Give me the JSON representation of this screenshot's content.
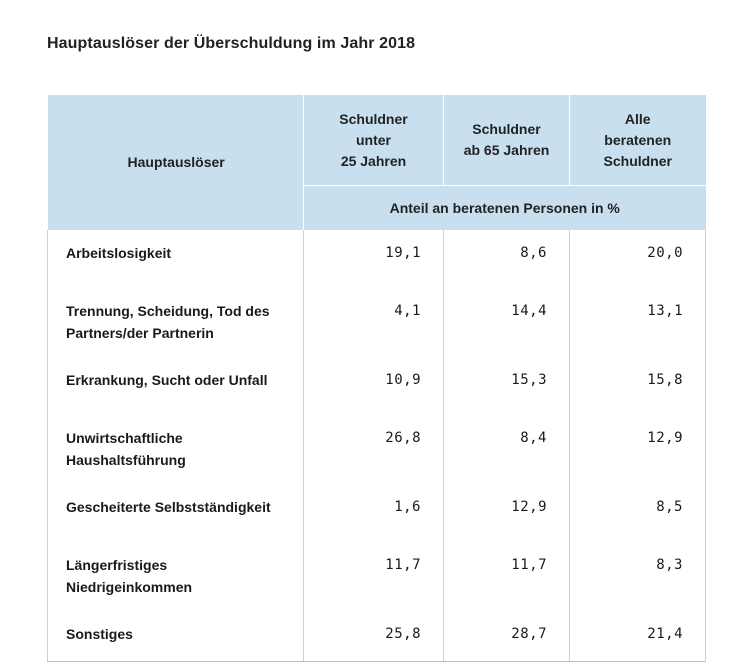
{
  "title": "Hauptauslöser der Überschuldung im Jahr 2018",
  "header": {
    "col1": "Hauptauslöser",
    "col2": "Schuldner\nunter\n25 Jahren",
    "col3": "Schuldner\nab 65 Jahren",
    "col4": "Alle\nberatenen\nSchuldner",
    "subheader": "Anteil an beratenen Personen in %"
  },
  "rows": [
    {
      "label": "Arbeitslosigkeit",
      "v1": "19,1",
      "v2": "8,6",
      "v3": "20,0"
    },
    {
      "label": "Trennung, Scheidung, Tod des Partners/der Partnerin",
      "v1": "4,1",
      "v2": "14,4",
      "v3": "13,1"
    },
    {
      "label": "Erkrankung, Sucht oder Unfall",
      "v1": "10,9",
      "v2": "15,3",
      "v3": "15,8"
    },
    {
      "label": "Unwirtschaftliche Haushaltsführung",
      "v1": "26,8",
      "v2": "8,4",
      "v3": "12,9"
    },
    {
      "label": "Gescheiterte Selbstständigkeit",
      "v1": "1,6",
      "v2": "12,9",
      "v3": "8,5"
    },
    {
      "label": "Längerfristiges Niedrigeinkommen",
      "v1": "11,7",
      "v2": "11,7",
      "v3": "8,3"
    },
    {
      "label": "Sonstiges",
      "v1": "25,8",
      "v2": "28,7",
      "v3": "21,4"
    }
  ],
  "colors": {
    "header_bg": "#c8dff0",
    "grid": "#d0d0d0"
  }
}
